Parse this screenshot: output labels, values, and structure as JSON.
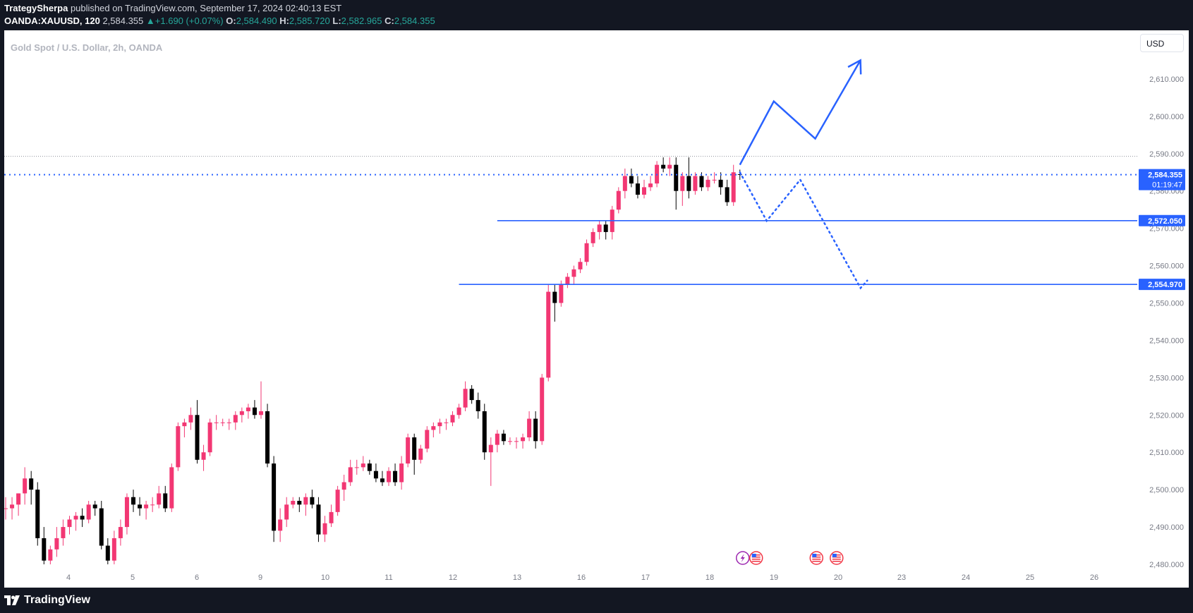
{
  "header": {
    "author": "TrategySherpa",
    "published_text": "published on TradingView.com, September 17, 2024 02:40:13 EST",
    "symbol": "OANDA:XAUUSD, 120",
    "last": "2,584.355",
    "change": "+1.690 (+0.07%)",
    "open_label": "O:",
    "open": "2,584.490",
    "high_label": "H:",
    "high": "2,585.720",
    "low_label": "L:",
    "low": "2,582.965",
    "close_label": "C:",
    "close": "2,584.355"
  },
  "pane_title": "Gold Spot / U.S. Dollar, 2h, OANDA",
  "currency_button": "USD",
  "brand": "TradingView",
  "colors": {
    "up": "#f23773",
    "down": "#000000",
    "drawing": "#2962ff",
    "price_label_bg": "#2962ff"
  },
  "chart_data": {
    "type": "candlestick",
    "ylim": [
      2480,
      2620
    ],
    "y_ticks": [
      2480,
      2490,
      2500,
      2510,
      2520,
      2530,
      2540,
      2550,
      2560,
      2570,
      2580,
      2590,
      2600,
      2610
    ],
    "y_tick_labels": [
      "2,480.000",
      "2,490.000",
      "2,500.000",
      "2,510.000",
      "2,520.000",
      "2,530.000",
      "2,540.000",
      "2,550.000",
      "2,560.000",
      "2,570.000",
      "2,580.000",
      "2,590.000",
      "2,600.000",
      "2,610.000"
    ],
    "x_axis_labels": [
      "4",
      "5",
      "6",
      "9",
      "10",
      "11",
      "12",
      "13",
      "16",
      "17",
      "18",
      "19",
      "20",
      "23",
      "24",
      "25",
      "26"
    ],
    "session_max_price": 2589.3,
    "candles": [
      {
        "o": 2495,
        "h": 2498,
        "l": 2492,
        "c": 2495
      },
      {
        "o": 2495,
        "h": 2498,
        "l": 2492,
        "c": 2496
      },
      {
        "o": 2496,
        "h": 2499,
        "l": 2493,
        "c": 2499
      },
      {
        "o": 2499,
        "h": 2506,
        "l": 2496,
        "c": 2503
      },
      {
        "o": 2503,
        "h": 2505,
        "l": 2496,
        "c": 2500
      },
      {
        "o": 2500,
        "h": 2502,
        "l": 2485,
        "c": 2487
      },
      {
        "o": 2487,
        "h": 2490,
        "l": 2480,
        "c": 2481
      },
      {
        "o": 2481,
        "h": 2485,
        "l": 2480,
        "c": 2484
      },
      {
        "o": 2484,
        "h": 2490,
        "l": 2482,
        "c": 2487
      },
      {
        "o": 2487,
        "h": 2492,
        "l": 2485,
        "c": 2490
      },
      {
        "o": 2490,
        "h": 2493,
        "l": 2488,
        "c": 2492
      },
      {
        "o": 2492,
        "h": 2494,
        "l": 2489,
        "c": 2493
      },
      {
        "o": 2493,
        "h": 2495,
        "l": 2490,
        "c": 2492
      },
      {
        "o": 2492,
        "h": 2497,
        "l": 2491,
        "c": 2496
      },
      {
        "o": 2496,
        "h": 2497,
        "l": 2493,
        "c": 2495
      },
      {
        "o": 2495,
        "h": 2497,
        "l": 2484,
        "c": 2485
      },
      {
        "o": 2485,
        "h": 2487,
        "l": 2480,
        "c": 2481
      },
      {
        "o": 2481,
        "h": 2489,
        "l": 2480,
        "c": 2487
      },
      {
        "o": 2487,
        "h": 2492,
        "l": 2485,
        "c": 2490
      },
      {
        "o": 2490,
        "h": 2499,
        "l": 2488,
        "c": 2498
      },
      {
        "o": 2498,
        "h": 2500,
        "l": 2494,
        "c": 2496
      },
      {
        "o": 2496,
        "h": 2498,
        "l": 2493,
        "c": 2495
      },
      {
        "o": 2495,
        "h": 2497,
        "l": 2492,
        "c": 2496
      },
      {
        "o": 2496,
        "h": 2498,
        "l": 2494,
        "c": 2496
      },
      {
        "o": 2496,
        "h": 2501,
        "l": 2495,
        "c": 2499
      },
      {
        "o": 2499,
        "h": 2501,
        "l": 2494,
        "c": 2495
      },
      {
        "o": 2495,
        "h": 2507,
        "l": 2494,
        "c": 2506
      },
      {
        "o": 2506,
        "h": 2518,
        "l": 2505,
        "c": 2517
      },
      {
        "o": 2517,
        "h": 2519,
        "l": 2514,
        "c": 2518
      },
      {
        "o": 2518,
        "h": 2522,
        "l": 2516,
        "c": 2520
      },
      {
        "o": 2520,
        "h": 2524,
        "l": 2507,
        "c": 2508
      },
      {
        "o": 2508,
        "h": 2512,
        "l": 2505,
        "c": 2510
      },
      {
        "o": 2510,
        "h": 2519,
        "l": 2509,
        "c": 2518
      },
      {
        "o": 2518,
        "h": 2520,
        "l": 2516,
        "c": 2518
      },
      {
        "o": 2518,
        "h": 2519,
        "l": 2517,
        "c": 2518
      },
      {
        "o": 2518,
        "h": 2519,
        "l": 2516,
        "c": 2518
      },
      {
        "o": 2518,
        "h": 2521,
        "l": 2516,
        "c": 2520
      },
      {
        "o": 2520,
        "h": 2522,
        "l": 2518,
        "c": 2521
      },
      {
        "o": 2521,
        "h": 2523,
        "l": 2519,
        "c": 2522
      },
      {
        "o": 2522,
        "h": 2524,
        "l": 2519,
        "c": 2520
      },
      {
        "o": 2520,
        "h": 2529,
        "l": 2519,
        "c": 2521
      },
      {
        "o": 2521,
        "h": 2523,
        "l": 2506,
        "c": 2507
      },
      {
        "o": 2507,
        "h": 2509,
        "l": 2486,
        "c": 2489
      },
      {
        "o": 2489,
        "h": 2495,
        "l": 2486,
        "c": 2492
      },
      {
        "o": 2492,
        "h": 2498,
        "l": 2490,
        "c": 2496
      },
      {
        "o": 2496,
        "h": 2498,
        "l": 2495,
        "c": 2497
      },
      {
        "o": 2497,
        "h": 2498,
        "l": 2494,
        "c": 2496
      },
      {
        "o": 2496,
        "h": 2499,
        "l": 2493,
        "c": 2498
      },
      {
        "o": 2498,
        "h": 2500,
        "l": 2495,
        "c": 2496
      },
      {
        "o": 2496,
        "h": 2498,
        "l": 2486,
        "c": 2488
      },
      {
        "o": 2488,
        "h": 2493,
        "l": 2486,
        "c": 2491
      },
      {
        "o": 2491,
        "h": 2496,
        "l": 2490,
        "c": 2494
      },
      {
        "o": 2494,
        "h": 2501,
        "l": 2493,
        "c": 2500
      },
      {
        "o": 2500,
        "h": 2504,
        "l": 2497,
        "c": 2502
      },
      {
        "o": 2502,
        "h": 2508,
        "l": 2501,
        "c": 2506
      },
      {
        "o": 2506,
        "h": 2508,
        "l": 2504,
        "c": 2506
      },
      {
        "o": 2506,
        "h": 2509,
        "l": 2505,
        "c": 2507
      },
      {
        "o": 2507,
        "h": 2508,
        "l": 2504,
        "c": 2505
      },
      {
        "o": 2505,
        "h": 2507,
        "l": 2502,
        "c": 2503
      },
      {
        "o": 2503,
        "h": 2505,
        "l": 2501,
        "c": 2502
      },
      {
        "o": 2502,
        "h": 2506,
        "l": 2501,
        "c": 2505
      },
      {
        "o": 2505,
        "h": 2507,
        "l": 2501,
        "c": 2502
      },
      {
        "o": 2502,
        "h": 2509,
        "l": 2500,
        "c": 2507
      },
      {
        "o": 2507,
        "h": 2515,
        "l": 2506,
        "c": 2514
      },
      {
        "o": 2514,
        "h": 2515,
        "l": 2504,
        "c": 2508
      },
      {
        "o": 2508,
        "h": 2512,
        "l": 2507,
        "c": 2511
      },
      {
        "o": 2511,
        "h": 2517,
        "l": 2510,
        "c": 2516
      },
      {
        "o": 2516,
        "h": 2518,
        "l": 2514,
        "c": 2517
      },
      {
        "o": 2517,
        "h": 2519,
        "l": 2515,
        "c": 2518
      },
      {
        "o": 2518,
        "h": 2519,
        "l": 2516,
        "c": 2518
      },
      {
        "o": 2518,
        "h": 2521,
        "l": 2517,
        "c": 2520
      },
      {
        "o": 2520,
        "h": 2523,
        "l": 2519,
        "c": 2522
      },
      {
        "o": 2522,
        "h": 2529,
        "l": 2521,
        "c": 2527
      },
      {
        "o": 2527,
        "h": 2528,
        "l": 2523,
        "c": 2524
      },
      {
        "o": 2524,
        "h": 2526,
        "l": 2519,
        "c": 2521
      },
      {
        "o": 2521,
        "h": 2523,
        "l": 2508,
        "c": 2510
      },
      {
        "o": 2510,
        "h": 2514,
        "l": 2501,
        "c": 2512
      },
      {
        "o": 2512,
        "h": 2516,
        "l": 2510,
        "c": 2515
      },
      {
        "o": 2515,
        "h": 2516,
        "l": 2512,
        "c": 2513
      },
      {
        "o": 2513,
        "h": 2514,
        "l": 2512,
        "c": 2513
      },
      {
        "o": 2513,
        "h": 2514,
        "l": 2511,
        "c": 2513
      },
      {
        "o": 2513,
        "h": 2515,
        "l": 2511,
        "c": 2514
      },
      {
        "o": 2514,
        "h": 2521,
        "l": 2513,
        "c": 2519
      },
      {
        "o": 2519,
        "h": 2521,
        "l": 2511,
        "c": 2513
      },
      {
        "o": 2513,
        "h": 2531,
        "l": 2512,
        "c": 2530
      },
      {
        "o": 2530,
        "h": 2555,
        "l": 2529,
        "c": 2553
      },
      {
        "o": 2553,
        "h": 2555,
        "l": 2545,
        "c": 2550
      },
      {
        "o": 2550,
        "h": 2556,
        "l": 2549,
        "c": 2555
      },
      {
        "o": 2555,
        "h": 2558,
        "l": 2554,
        "c": 2557
      },
      {
        "o": 2557,
        "h": 2560,
        "l": 2555,
        "c": 2559
      },
      {
        "o": 2559,
        "h": 2562,
        "l": 2558,
        "c": 2561
      },
      {
        "o": 2561,
        "h": 2567,
        "l": 2560,
        "c": 2566
      },
      {
        "o": 2566,
        "h": 2570,
        "l": 2565,
        "c": 2569
      },
      {
        "o": 2569,
        "h": 2572,
        "l": 2567,
        "c": 2571
      },
      {
        "o": 2571,
        "h": 2572,
        "l": 2567,
        "c": 2569
      },
      {
        "o": 2569,
        "h": 2576,
        "l": 2567,
        "c": 2575
      },
      {
        "o": 2575,
        "h": 2581,
        "l": 2574,
        "c": 2580
      },
      {
        "o": 2580,
        "h": 2586,
        "l": 2578,
        "c": 2584
      },
      {
        "o": 2584,
        "h": 2586,
        "l": 2581,
        "c": 2582
      },
      {
        "o": 2582,
        "h": 2584,
        "l": 2578,
        "c": 2579
      },
      {
        "o": 2579,
        "h": 2583,
        "l": 2578,
        "c": 2581
      },
      {
        "o": 2581,
        "h": 2584,
        "l": 2580,
        "c": 2582
      },
      {
        "o": 2582,
        "h": 2588,
        "l": 2581,
        "c": 2587
      },
      {
        "o": 2587,
        "h": 2589,
        "l": 2585,
        "c": 2586
      },
      {
        "o": 2586,
        "h": 2589,
        "l": 2584,
        "c": 2587
      },
      {
        "o": 2587,
        "h": 2589,
        "l": 2575,
        "c": 2580
      },
      {
        "o": 2580,
        "h": 2585,
        "l": 2576,
        "c": 2584
      },
      {
        "o": 2584,
        "h": 2589,
        "l": 2578,
        "c": 2580
      },
      {
        "o": 2580,
        "h": 2585,
        "l": 2579,
        "c": 2584
      },
      {
        "o": 2584,
        "h": 2585,
        "l": 2580,
        "c": 2581
      },
      {
        "o": 2581,
        "h": 2584,
        "l": 2580,
        "c": 2583
      },
      {
        "o": 2583,
        "h": 2585,
        "l": 2582,
        "c": 2583
      },
      {
        "o": 2583,
        "h": 2585,
        "l": 2579,
        "c": 2581
      },
      {
        "o": 2581,
        "h": 2583,
        "l": 2576,
        "c": 2577
      },
      {
        "o": 2577,
        "h": 2587,
        "l": 2576,
        "c": 2585
      },
      {
        "o": 2584.49,
        "h": 2585.72,
        "l": 2582.965,
        "c": 2584.355
      }
    ],
    "horizontal_levels": [
      {
        "price": 2572.05,
        "label": "2,572.050"
      },
      {
        "price": 2554.97,
        "label": "2,554.970"
      }
    ],
    "current_price": {
      "price": 2584.355,
      "label": "2,584.355",
      "countdown": "01:19:47"
    },
    "projection_bullish": [
      {
        "bar_offset": 0,
        "price": 2587
      },
      {
        "bar_offset": 4.5,
        "price": 2604
      },
      {
        "bar_offset": 10,
        "price": 2594
      },
      {
        "bar_offset": 16,
        "price": 2615
      }
    ],
    "projection_bearish": [
      {
        "bar_offset": 0,
        "price": 2585
      },
      {
        "bar_offset": 4,
        "price": 2572
      },
      {
        "bar_offset": 9,
        "price": 2583
      },
      {
        "bar_offset": 18,
        "price": 2554
      },
      {
        "bar_offset": 19,
        "price": 2556
      }
    ],
    "event_markers": [
      {
        "bar_offset": 0,
        "type": "flash"
      },
      {
        "bar_offset": 2,
        "type": "us-flag"
      },
      {
        "bar_offset": 11,
        "type": "us-flag"
      },
      {
        "bar_offset": 14,
        "type": "us-flag"
      }
    ]
  }
}
